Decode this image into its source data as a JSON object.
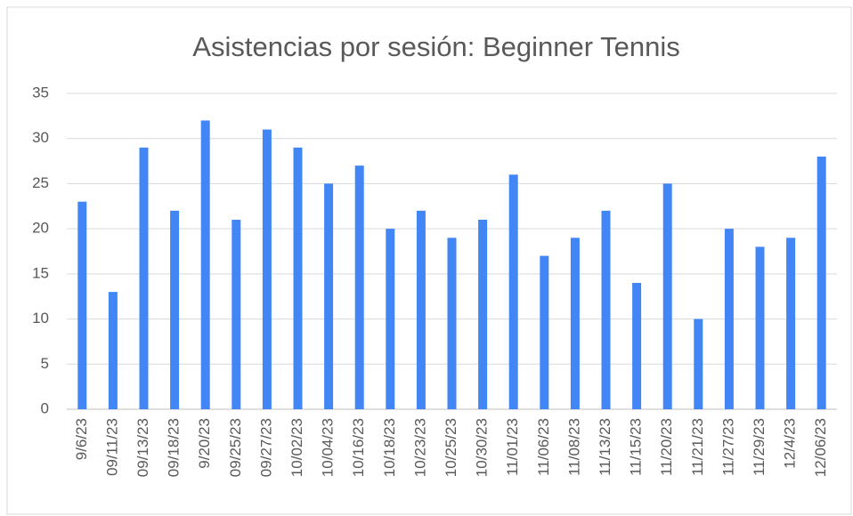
{
  "chart_data": {
    "type": "bar",
    "title": "Asistencias por sesión: Beginner Tennis",
    "categories": [
      "9/6/23",
      "09/11/23",
      "09/13/23",
      "09/18/23",
      "9/20/23",
      "09/25/23",
      "09/27/23",
      "10/02/23",
      "10/04/23",
      "10/16/23",
      "10/18/23",
      "10/23/23",
      "10/25/23",
      "10/30/23",
      "11/01/23",
      "11/06/23",
      "11/08/23",
      "11/13/23",
      "11/15/23",
      "11/20/23",
      "11/21/23",
      "11/27/23",
      "11/29/23",
      "12/4/23",
      "12/06/23"
    ],
    "values": [
      23,
      13,
      29,
      22,
      32,
      21,
      31,
      29,
      25,
      27,
      20,
      22,
      19,
      21,
      26,
      17,
      19,
      22,
      14,
      25,
      10,
      20,
      18,
      19,
      28
    ],
    "color": "#4285f4",
    "ylim": [
      0,
      35
    ],
    "yticks": [
      0,
      5,
      10,
      15,
      20,
      25,
      30,
      35
    ],
    "grid": true
  }
}
